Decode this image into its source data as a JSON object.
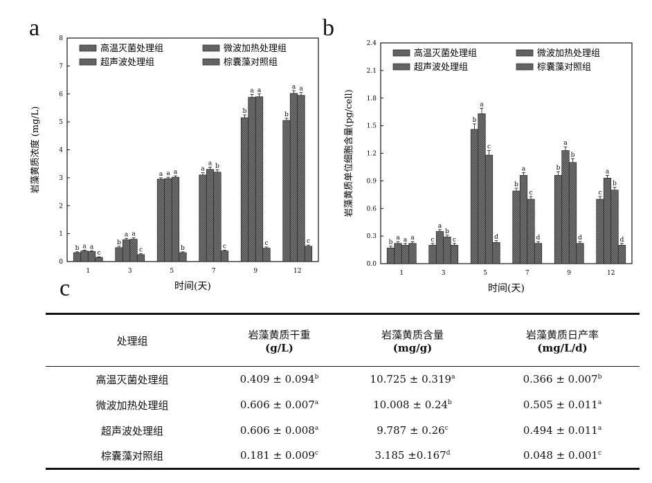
{
  "panel_labels": {
    "a": "a",
    "b": "b",
    "c": "c"
  },
  "chart_data": [
    {
      "type": "bar",
      "xlabel": "时间(天)",
      "ylabel": "岩藻黄质浓度 (mg/L)",
      "categories": [
        "1",
        "3",
        "5",
        "7",
        "9",
        "12"
      ],
      "ylim": [
        0,
        8
      ],
      "yticks": [
        "0",
        "1",
        "2",
        "3",
        "4",
        "5",
        "6",
        "7",
        "8"
      ],
      "series": [
        {
          "name": "高温灭菌处理组",
          "values": [
            0.32,
            0.5,
            2.95,
            3.1,
            5.15,
            5.05
          ],
          "errors": [
            0.03,
            0.05,
            0.05,
            0.08,
            0.1,
            0.08
          ],
          "labels": [
            "b",
            "b",
            "a",
            "a",
            "b",
            "b"
          ]
        },
        {
          "name": "微波加热处理组",
          "values": [
            0.38,
            0.78,
            2.97,
            3.3,
            5.88,
            6.02
          ],
          "errors": [
            0.03,
            0.05,
            0.05,
            0.08,
            0.1,
            0.1
          ],
          "labels": [
            "a",
            "a",
            "a",
            "a",
            "a",
            "a"
          ]
        },
        {
          "name": "超声波处理组",
          "values": [
            0.36,
            0.8,
            3.02,
            3.2,
            5.9,
            5.95
          ],
          "errors": [
            0.03,
            0.05,
            0.05,
            0.08,
            0.1,
            0.1
          ],
          "labels": [
            "a",
            "a",
            "a",
            "b",
            "a",
            "a"
          ]
        },
        {
          "name": "棕囊藻对照组",
          "values": [
            0.15,
            0.25,
            0.32,
            0.38,
            0.48,
            0.55
          ],
          "errors": [
            0.02,
            0.03,
            0.03,
            0.03,
            0.04,
            0.04
          ],
          "labels": [
            "c",
            "c",
            "b",
            "c",
            "c",
            "c"
          ]
        }
      ],
      "legend": "top-left"
    },
    {
      "type": "bar",
      "xlabel": "时间(天)",
      "ylabel": "岩藻黄质单位细胞含量(pg/cell)",
      "categories": [
        "1",
        "3",
        "5",
        "7",
        "9",
        "12"
      ],
      "ylim": [
        0,
        2.4
      ],
      "yticks": [
        "0.0",
        "0.3",
        "0.6",
        "0.9",
        "1.2",
        "1.5",
        "1.8",
        "2.1",
        "2.4"
      ],
      "series": [
        {
          "name": "高温灭菌处理组",
          "values": [
            0.17,
            0.2,
            1.46,
            0.79,
            0.96,
            0.7
          ],
          "errors": [
            0.02,
            0.02,
            0.06,
            0.03,
            0.04,
            0.03
          ],
          "labels": [
            "b",
            "c",
            "b",
            "b",
            "b",
            "c"
          ]
        },
        {
          "name": "微波加热处理组",
          "values": [
            0.22,
            0.35,
            1.63,
            0.96,
            1.23,
            0.93
          ],
          "errors": [
            0.02,
            0.02,
            0.06,
            0.03,
            0.04,
            0.03
          ],
          "labels": [
            "a",
            "a",
            "a",
            "a",
            "a",
            "a"
          ]
        },
        {
          "name": "超声波处理组",
          "values": [
            0.2,
            0.29,
            1.18,
            0.7,
            1.1,
            0.8
          ],
          "errors": [
            0.02,
            0.02,
            0.05,
            0.03,
            0.04,
            0.03
          ],
          "labels": [
            "a",
            "b",
            "c",
            "c",
            "b",
            "b"
          ]
        },
        {
          "name": "棕囊藻对照组",
          "values": [
            0.22,
            0.2,
            0.23,
            0.22,
            0.22,
            0.2
          ],
          "errors": [
            0.02,
            0.02,
            0.02,
            0.02,
            0.02,
            0.02
          ],
          "labels": [
            "a",
            "c",
            "d",
            "d",
            "d",
            "d"
          ]
        }
      ],
      "legend": "top-left"
    },
    {
      "type": "table",
      "headers": [
        {
          "line1": "处理组",
          "line2": ""
        },
        {
          "line1": "岩藻黄质干重",
          "line2": "(g/L)"
        },
        {
          "line1": "岩藻黄质含量",
          "line2": "(mg/g)"
        },
        {
          "line1": "岩藻黄质日产率",
          "line2": "(mg/L/d)"
        }
      ],
      "rows": [
        {
          "group": "高温灭菌处理组",
          "dry": "0.409 ± 0.094",
          "dry_sig": "b",
          "content": "10.725 ± 0.319",
          "content_sig": "a",
          "rate": "0.366 ± 0.007",
          "rate_sig": "b"
        },
        {
          "group": "微波加热处理组",
          "dry": "0.606 ± 0.007",
          "dry_sig": "a",
          "content": "10.008 ± 0.24",
          "content_sig": "b",
          "rate": "0.505 ± 0.011",
          "rate_sig": "a"
        },
        {
          "group": "超声波处理组",
          "dry": "0.606 ± 0.008",
          "dry_sig": "a",
          "content": "9.787 ± 0.26",
          "content_sig": "c",
          "rate": "0.494 ± 0.011",
          "rate_sig": "a"
        },
        {
          "group": "棕囊藻对照组",
          "dry": "0.181 ± 0.009",
          "dry_sig": "c",
          "content": "3.185 ±0.167",
          "content_sig": "d",
          "rate": "0.048 ± 0.001",
          "rate_sig": "c"
        }
      ]
    }
  ],
  "colors": {
    "bar_fill": "#6a6a6a",
    "bar_edge": "#222222",
    "text": "#111111"
  }
}
